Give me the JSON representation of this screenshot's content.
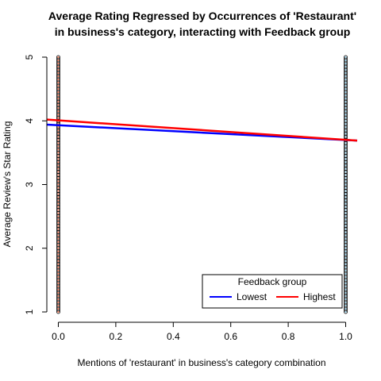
{
  "chart_data": {
    "type": "scatter",
    "title": "Average Rating Regressed by Occurrences of 'Restaurant' in business's category, interacting with Feedback group",
    "title_lines": [
      "Average Rating Regressed by Occurrences of 'Restaurant'",
      "in business's category, interacting with Feedback group"
    ],
    "xlabel": "Mentions of 'restaurant' in business's category combination",
    "ylabel": "Average Review's Star Rating",
    "xlim": [
      -0.04,
      1.04
    ],
    "ylim": [
      1.0,
      5.0
    ],
    "x_ticks": [
      0.0,
      0.2,
      0.4,
      0.6,
      0.8,
      1.0
    ],
    "x_tick_labels": [
      "0.0",
      "0.2",
      "0.4",
      "0.6",
      "0.8",
      "1.0"
    ],
    "y_ticks": [
      1,
      2,
      3,
      4,
      5
    ],
    "y_tick_labels": [
      "1",
      "2",
      "3",
      "4",
      "5"
    ],
    "grid": false,
    "scatter_points": {
      "x_values": [
        0,
        1
      ],
      "y_min": 1.0,
      "y_max": 5.0,
      "step": 0.025
    },
    "series": [
      {
        "name": "Lowest",
        "color": "#0000ff",
        "x": [
          -0.04,
          1.04
        ],
        "y": [
          3.94,
          3.69
        ]
      },
      {
        "name": "Highest",
        "color": "#ff0000",
        "x": [
          -0.04,
          1.04
        ],
        "y": [
          4.02,
          3.69
        ]
      }
    ],
    "legend": {
      "title": "Feedback group",
      "placement": "bottom-right",
      "entries": [
        "Lowest",
        "Highest"
      ]
    }
  }
}
